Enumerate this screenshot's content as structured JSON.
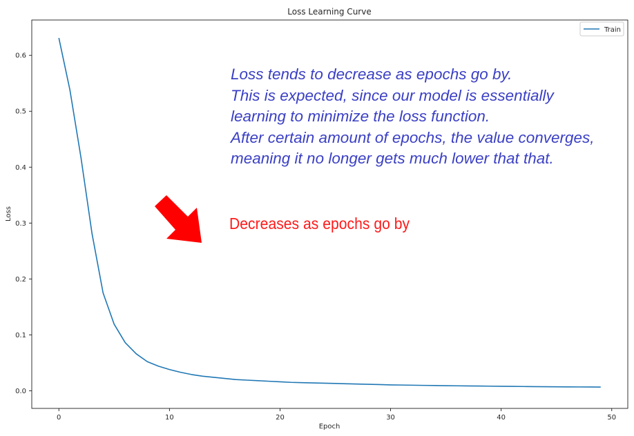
{
  "chart_data": {
    "type": "line",
    "title": "Loss Learning Curve",
    "xlabel": "Epoch",
    "ylabel": "Loss",
    "xlim": [
      -2.45,
      51.45
    ],
    "ylim": [
      -0.0316,
      0.6632
    ],
    "xticks": [
      0,
      10,
      20,
      30,
      40,
      50
    ],
    "yticks": [
      0.0,
      0.1,
      0.2,
      0.3,
      0.4,
      0.5,
      0.6
    ],
    "xtick_labels": [
      "0",
      "10",
      "20",
      "30",
      "40",
      "50"
    ],
    "ytick_labels": [
      "0.0",
      "0.1",
      "0.2",
      "0.3",
      "0.4",
      "0.5",
      "0.6"
    ],
    "grid": false,
    "legend_position": "top-right",
    "series": [
      {
        "name": "Train",
        "color": "#1f77b4",
        "x": [
          0,
          1,
          2,
          3,
          4,
          5,
          6,
          7,
          8,
          9,
          10,
          11,
          12,
          13,
          14,
          15,
          16,
          17,
          18,
          19,
          20,
          21,
          22,
          23,
          24,
          25,
          26,
          27,
          28,
          29,
          30,
          31,
          32,
          33,
          34,
          35,
          36,
          37,
          38,
          39,
          40,
          41,
          42,
          43,
          44,
          45,
          46,
          47,
          48,
          49
        ],
        "values": [
          0.631,
          0.538,
          0.417,
          0.281,
          0.175,
          0.119,
          0.086,
          0.066,
          0.052,
          0.044,
          0.038,
          0.033,
          0.029,
          0.026,
          0.024,
          0.022,
          0.02,
          0.019,
          0.018,
          0.017,
          0.016,
          0.015,
          0.0145,
          0.014,
          0.0135,
          0.013,
          0.0125,
          0.012,
          0.0115,
          0.011,
          0.0105,
          0.0102,
          0.0099,
          0.0096,
          0.0093,
          0.009,
          0.0088,
          0.0086,
          0.0084,
          0.0082,
          0.008,
          0.0078,
          0.0076,
          0.0074,
          0.0072,
          0.007,
          0.0069,
          0.0068,
          0.0067,
          0.0066
        ]
      }
    ]
  },
  "annotations": {
    "explanation_lines": [
      "Loss tends to decrease as epochs go by.",
      "This is expected, since our model is essentially",
      "learning to minimize the loss function.",
      "After certain amount of epochs, the value converges,",
      "meaning it no longer gets much lower that that."
    ],
    "explanation_color": "#3a3fc4",
    "callout_text": "Decreases as epochs go by",
    "callout_color": "#ff1a1a",
    "arrow_icon": "red-arrow-down-right-icon"
  }
}
